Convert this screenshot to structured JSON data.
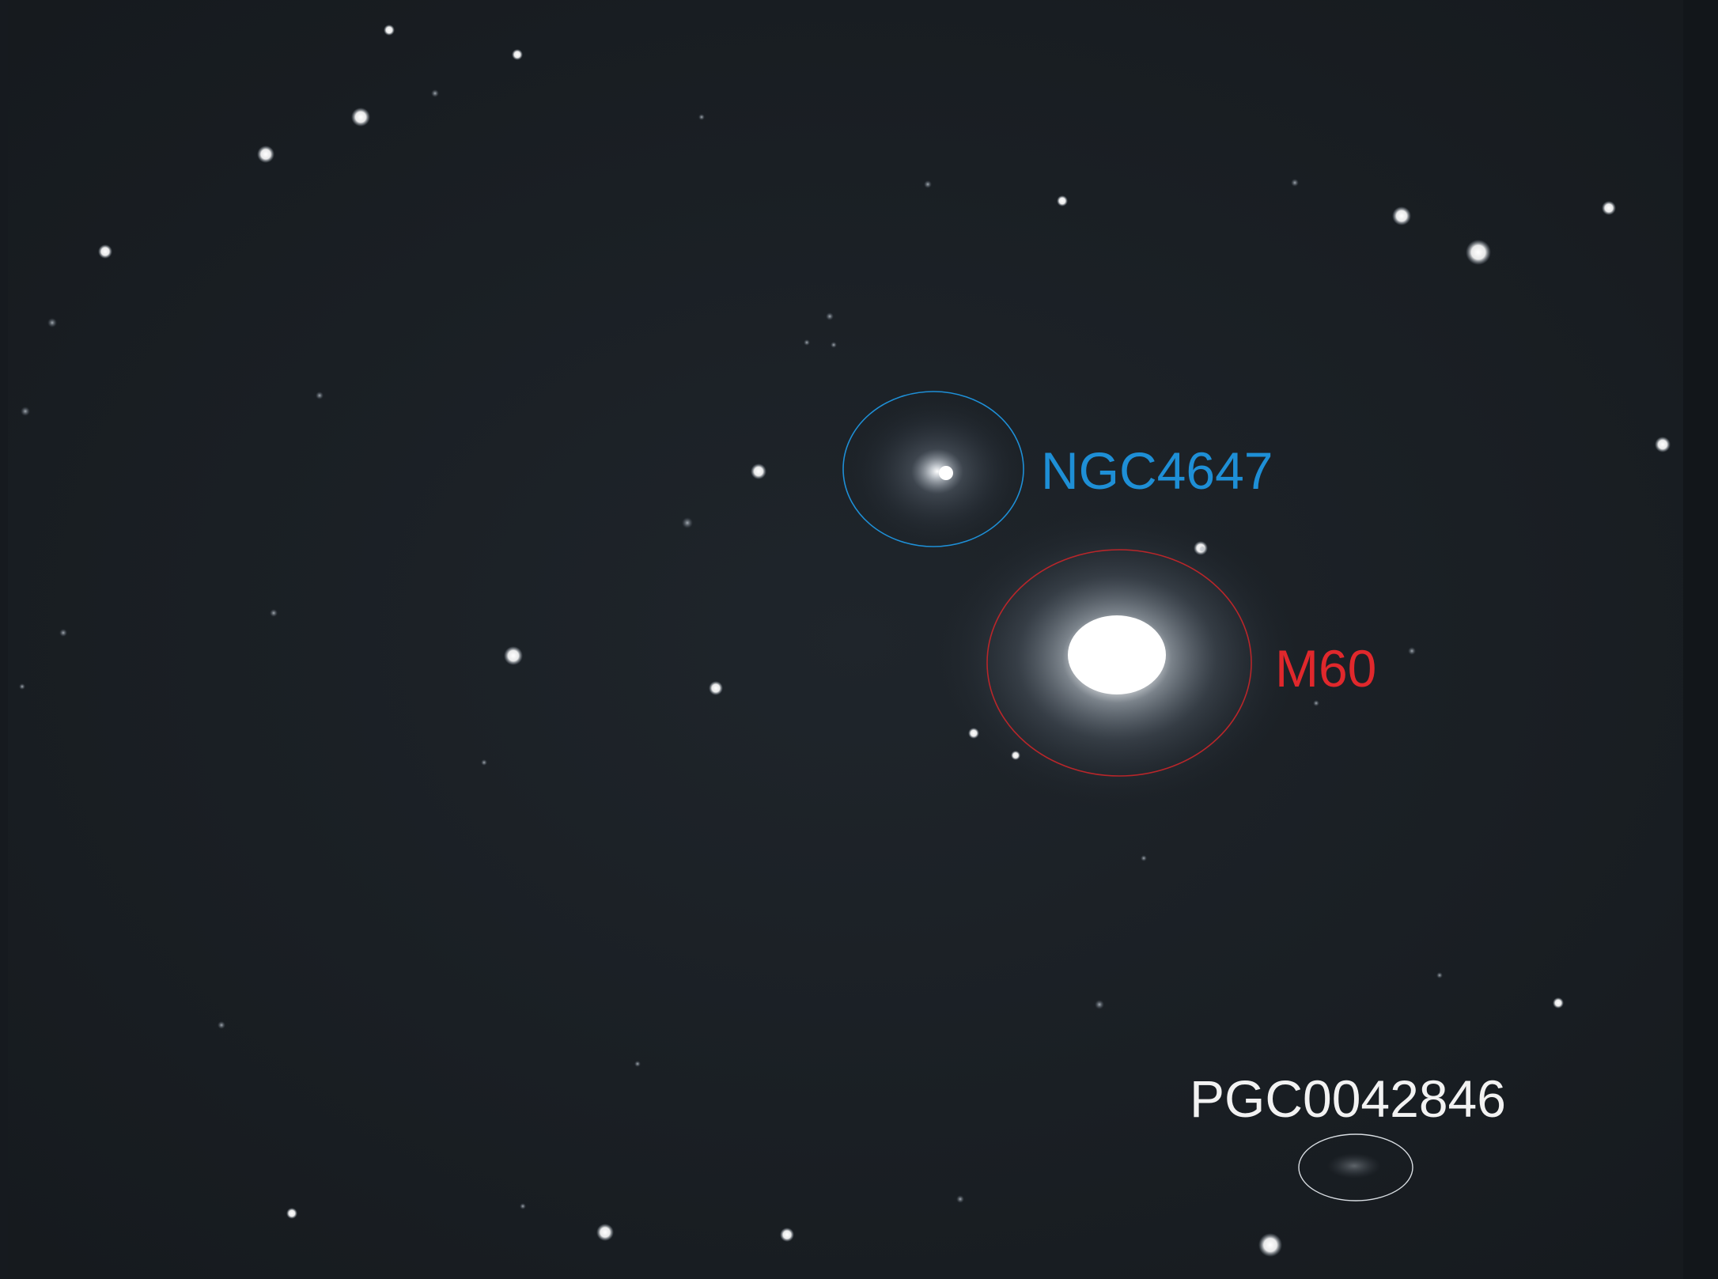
{
  "labels": {
    "ngc4647": "NGC4647",
    "m60": "M60",
    "pgc": "PGC0042846"
  },
  "colors": {
    "ngc4647": "#1e8fd6",
    "m60": "#e0282c",
    "pgc": "#f2f2f2",
    "sky": "#1b2026"
  }
}
